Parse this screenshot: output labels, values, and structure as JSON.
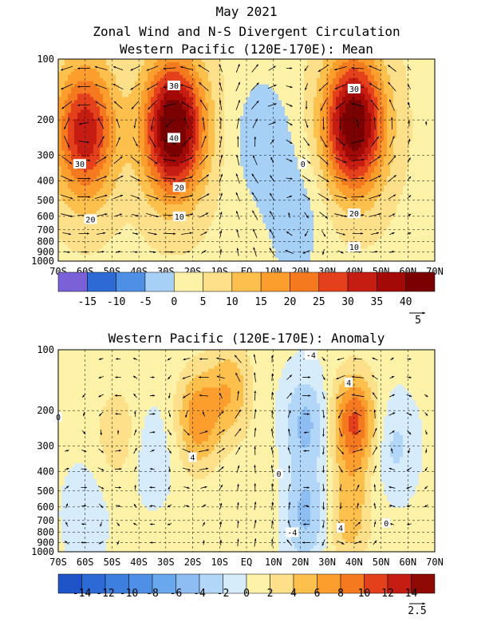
{
  "figure": {
    "title_lines": [
      "May 2021",
      "Zonal Wind and N-S Divergent Circulation",
      "Western Pacific (120E-170E): Mean"
    ]
  },
  "chart_data": [
    {
      "type": "heatmap",
      "title": "Western Pacific (120E-170E): Mean",
      "x_ticks": [
        "70S",
        "60S",
        "50S",
        "40S",
        "30S",
        "20S",
        "10S",
        "EQ",
        "10N",
        "20N",
        "30N",
        "40N",
        "50N",
        "60N",
        "70N"
      ],
      "x_range": [
        -70,
        70
      ],
      "y_ticks": [
        "100",
        "200",
        "300",
        "400",
        "500",
        "600",
        "700",
        "800",
        "900",
        "1000"
      ],
      "y_range": [
        1000,
        100
      ],
      "y_scale": "log",
      "colorbar": {
        "labels": [
          "-15",
          "-10",
          "-5",
          "0",
          "5",
          "10",
          "15",
          "20",
          "25",
          "30",
          "35",
          "40"
        ],
        "colors": [
          "#7a61d8",
          "#2d6ad6",
          "#4f90e6",
          "#a7d0f7",
          "#fdf2a8",
          "#fee08a",
          "#fdc04c",
          "#fc9e2e",
          "#f57a1f",
          "#e5401c",
          "#c61d13",
          "#a30a07",
          "#7b0001"
        ]
      },
      "contour_labels": [
        {
          "text": "30",
          "lat": -27,
          "p": 135
        },
        {
          "text": "40",
          "lat": -27,
          "p": 245
        },
        {
          "text": "20",
          "lat": -25,
          "p": 430
        },
        {
          "text": "10",
          "lat": -25,
          "p": 600
        },
        {
          "text": "30",
          "lat": -62,
          "p": 330
        },
        {
          "text": "20",
          "lat": -58,
          "p": 620
        },
        {
          "text": "30",
          "lat": 40,
          "p": 140
        },
        {
          "text": "20",
          "lat": 40,
          "p": 580
        },
        {
          "text": "10",
          "lat": 40,
          "p": 850
        },
        {
          "text": "0",
          "lat": 21,
          "p": 330
        }
      ],
      "jets": [
        {
          "lat": -27,
          "p": 220,
          "value": 44
        },
        {
          "lat": 40,
          "p": 210,
          "value": 42
        },
        {
          "lat": -60,
          "p": 230,
          "value": 30
        }
      ],
      "easterlies": [
        {
          "lat": 6,
          "p": 250,
          "value": -8
        },
        {
          "lat": 18,
          "p": 650,
          "value": -7
        }
      ],
      "vector_reference": "5"
    },
    {
      "type": "heatmap",
      "title": "Western Pacific (120E-170E): Anomaly",
      "x_ticks": [
        "70S",
        "60S",
        "50S",
        "40S",
        "30S",
        "20S",
        "10S",
        "EQ",
        "10N",
        "20N",
        "30N",
        "40N",
        "50N",
        "60N",
        "70N"
      ],
      "x_range": [
        -70,
        70
      ],
      "y_ticks": [
        "100",
        "200",
        "300",
        "400",
        "500",
        "600",
        "700",
        "800",
        "900",
        "1000"
      ],
      "y_range": [
        1000,
        100
      ],
      "y_scale": "log",
      "colorbar": {
        "labels": [
          "-14",
          "-12",
          "-10",
          "-8",
          "-6",
          "-4",
          "-2",
          "0",
          "2",
          "4",
          "6",
          "8",
          "10",
          "12",
          "14"
        ],
        "colors": [
          "#1f54c8",
          "#2d6ad6",
          "#3d7fdf",
          "#4f90e6",
          "#6aa8ee",
          "#8dbdf3",
          "#b1d6f8",
          "#d7ecfb",
          "#fdf2a8",
          "#fee08a",
          "#fdc04c",
          "#fc9e2e",
          "#f57a1f",
          "#e5401c",
          "#c61d13",
          "#8f0a05"
        ]
      },
      "contour_labels": [
        {
          "text": "4",
          "lat": -20,
          "p": 340
        },
        {
          "text": "4",
          "lat": 38,
          "p": 145
        },
        {
          "text": "4",
          "lat": 35,
          "p": 760
        },
        {
          "text": "-4",
          "lat": 24,
          "p": 106
        },
        {
          "text": "0",
          "lat": -70,
          "p": 215
        },
        {
          "text": "0",
          "lat": 12,
          "p": 410
        },
        {
          "text": "-4",
          "lat": 17,
          "p": 800
        },
        {
          "text": "0",
          "lat": 52,
          "p": 720
        }
      ],
      "anomaly_centers": [
        {
          "lat": -18,
          "p": 220,
          "value": 7
        },
        {
          "lat": -6,
          "p": 160,
          "value": 5
        },
        {
          "lat": 40,
          "p": 230,
          "value": 10
        },
        {
          "lat": 38,
          "p": 650,
          "value": 5
        },
        {
          "lat": -48,
          "p": 260,
          "value": 3
        },
        {
          "lat": -60,
          "p": 650,
          "value": -2
        },
        {
          "lat": -35,
          "p": 330,
          "value": -2
        },
        {
          "lat": 22,
          "p": 230,
          "value": -5
        },
        {
          "lat": 22,
          "p": 650,
          "value": -5
        },
        {
          "lat": 55,
          "p": 300,
          "value": -3
        },
        {
          "lat": 5,
          "p": 500,
          "value": 1
        }
      ],
      "vector_reference": "2.5"
    }
  ]
}
